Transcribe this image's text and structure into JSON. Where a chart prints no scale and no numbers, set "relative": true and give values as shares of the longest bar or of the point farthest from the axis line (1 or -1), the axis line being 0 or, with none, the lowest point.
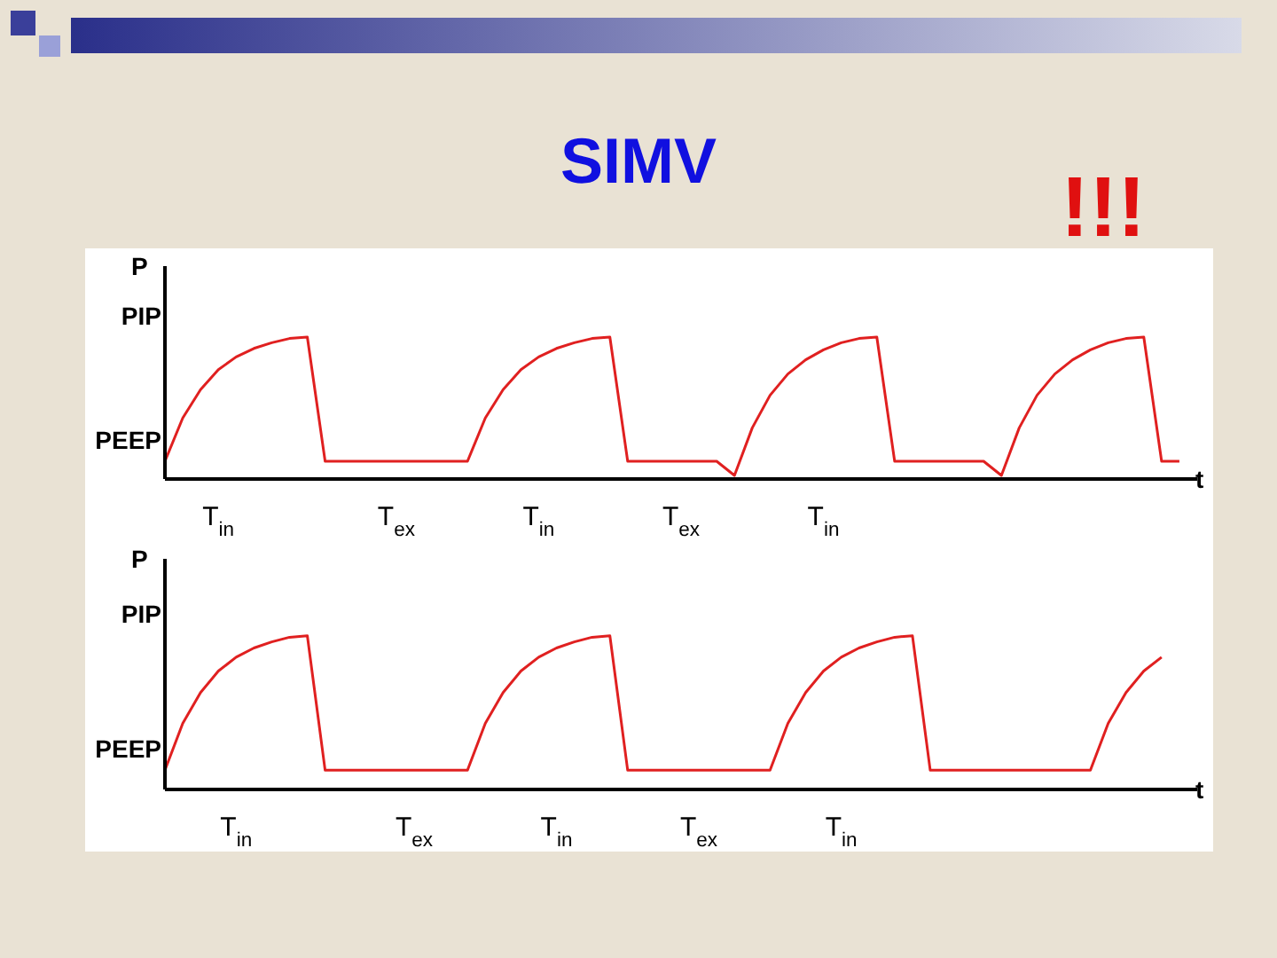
{
  "chart_data": [
    {
      "type": "line",
      "title": "SIMV",
      "relative": true,
      "ylabel": "P",
      "xlabel": "t",
      "annotations": [
        "PIP",
        "PEEP",
        "!!!"
      ],
      "categories": [
        null,
        null,
        null,
        "T$_{in}$",
        null,
        null,
        null,
        null,
        null,
        null,
        null,
        null,
        null,
        "T$_{ex}$",
        null,
        null,
        null,
        null,
        null,
        null,
        null,
        "T$_{in}$",
        null,
        null,
        null,
        null,
        null,
        null,
        null,
        "T$_{ex}$",
        null,
        null,
        null,
        null,
        null,
        null,
        null,
        "T$_{in}$",
        null,
        null,
        null,
        null,
        null,
        null,
        null,
        null,
        null,
        null,
        null,
        null,
        null,
        null,
        null,
        null,
        null,
        null,
        null,
        null,
        null
      ],
      "grid": false,
      "marker": "none",
      "line_style": "solid",
      "series": [
        {
          "color": "#e02020",
          "values": [
            0.125,
            0.43,
            0.63,
            0.77,
            0.86,
            0.92,
            0.96,
            0.99,
            1,
            0.125,
            0.125,
            0.125,
            0.125,
            0.125,
            0.125,
            0.125,
            0.125,
            0.125,
            0.43,
            0.63,
            0.77,
            0.86,
            0.92,
            0.96,
            0.99,
            1,
            0.125,
            0.125,
            0.125,
            0.125,
            0.125,
            0.125,
            0.025,
            0.36,
            0.59,
            0.74,
            0.84,
            0.91,
            0.96,
            0.99,
            1,
            0.125,
            0.125,
            0.125,
            0.125,
            0.125,
            0.125,
            0.025,
            0.36,
            0.59,
            0.74,
            0.84,
            0.91,
            0.96,
            0.99,
            1,
            0.125,
            0.125,
            null
          ]
        }
      ]
    },
    {
      "type": "line",
      "relative": true,
      "ylabel": "P",
      "xlabel": "t",
      "annotations": [
        "PIP",
        "PEEP"
      ],
      "categories": [
        null,
        null,
        null,
        null,
        "T$_{in}$",
        null,
        null,
        null,
        null,
        null,
        null,
        null,
        null,
        null,
        "T$_{ex}$",
        null,
        null,
        null,
        null,
        null,
        null,
        null,
        "T$_{in}$",
        null,
        null,
        null,
        null,
        null,
        null,
        null,
        "T$_{ex}$",
        null,
        null,
        null,
        null,
        null,
        null,
        null,
        "T$_{in}$",
        null,
        null,
        null,
        null,
        null,
        null,
        null,
        null,
        null,
        null,
        null,
        null,
        null,
        null,
        null,
        null,
        null,
        null,
        null,
        null
      ],
      "grid": false,
      "marker": "none",
      "line_style": "solid",
      "series": [
        {
          "color": "#e02020",
          "values": [
            0.125,
            0.43,
            0.63,
            0.77,
            0.86,
            0.92,
            0.96,
            0.99,
            1,
            0.125,
            0.125,
            0.125,
            0.125,
            0.125,
            0.125,
            0.125,
            0.125,
            0.125,
            0.43,
            0.63,
            0.77,
            0.86,
            0.92,
            0.96,
            0.99,
            1,
            0.125,
            0.125,
            0.125,
            0.125,
            0.125,
            0.125,
            0.125,
            0.125,
            0.125,
            0.43,
            0.63,
            0.77,
            0.86,
            0.92,
            0.96,
            0.99,
            1,
            0.125,
            0.125,
            0.125,
            0.125,
            0.125,
            0.125,
            0.125,
            0.125,
            0.125,
            0.125,
            0.43,
            0.63,
            0.77,
            0.86,
            null,
            null
          ]
        }
      ]
    }
  ]
}
